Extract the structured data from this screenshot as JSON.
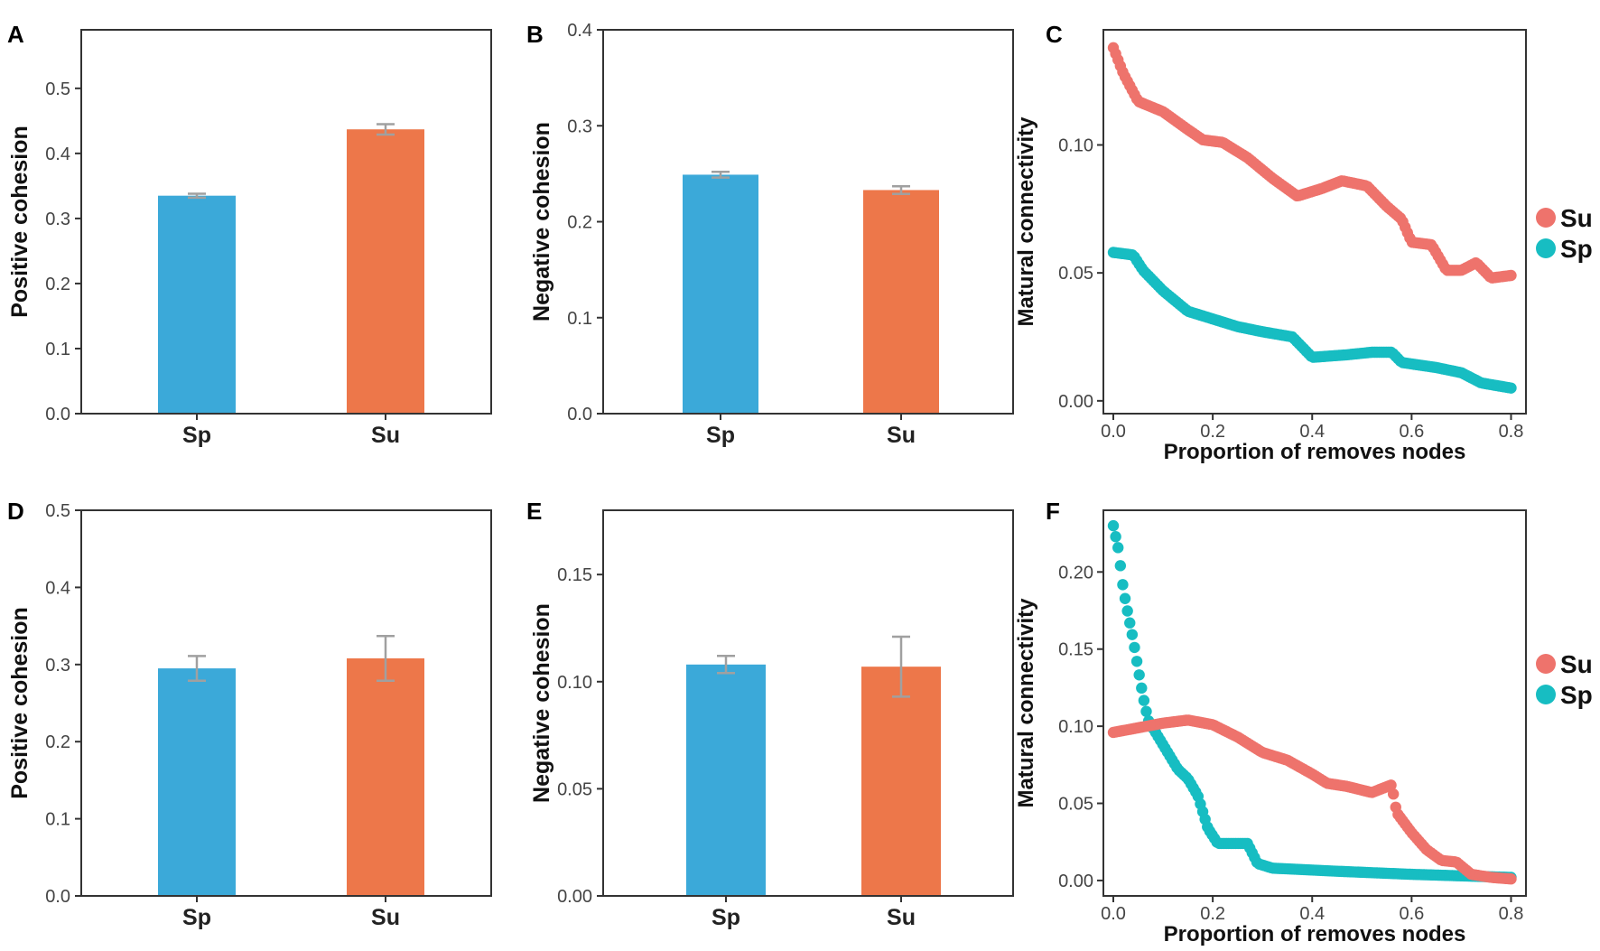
{
  "chart_data": [
    {
      "panel": "A",
      "type": "bar",
      "categories": [
        "Sp",
        "Su"
      ],
      "values": [
        0.335,
        0.437
      ],
      "errors": [
        0.003,
        0.008
      ],
      "colors": [
        "#3ba9d9",
        "#ed774a"
      ],
      "ylabel": "Positive cohesion",
      "xlabel": "",
      "ylim": [
        0,
        0.59
      ],
      "yticks": [
        0.0,
        0.1,
        0.2,
        0.3,
        0.4,
        0.5
      ],
      "ytick_labels": [
        "0.0",
        "0.1",
        "0.2",
        "0.3",
        "0.4",
        "0.5"
      ]
    },
    {
      "panel": "B",
      "type": "bar",
      "categories": [
        "Sp",
        "Su"
      ],
      "values": [
        0.249,
        0.233
      ],
      "errors": [
        0.003,
        0.004
      ],
      "colors": [
        "#3ba9d9",
        "#ed774a"
      ],
      "ylabel": "Negative cohesion",
      "xlabel": "",
      "ylim": [
        0,
        0.4
      ],
      "yticks": [
        0.0,
        0.1,
        0.2,
        0.3,
        0.4
      ],
      "ytick_labels": [
        "0.0",
        "0.1",
        "0.2",
        "0.3",
        "0.4"
      ]
    },
    {
      "panel": "C",
      "type": "scatter",
      "xlabel": "Proportion of removes nodes",
      "ylabel": "Matural connectivity",
      "xlim": [
        -0.02,
        0.83
      ],
      "ylim": [
        -0.005,
        0.145
      ],
      "xticks": [
        0.0,
        0.2,
        0.4,
        0.6,
        0.8
      ],
      "xtick_labels": [
        "0.0",
        "0.2",
        "0.4",
        "0.6",
        "0.8"
      ],
      "yticks": [
        0.0,
        0.05,
        0.1
      ],
      "ytick_labels": [
        "0.00",
        "0.05",
        "0.10"
      ],
      "legend": {
        "position": "right",
        "entries": [
          {
            "label": "Su",
            "color": "#ee736c"
          },
          {
            "label": "Sp",
            "color": "#17bdc2"
          }
        ]
      },
      "series": [
        {
          "name": "Su",
          "color": "#ee736c",
          "knots": [
            [
              0.0,
              0.138
            ],
            [
              0.02,
              0.128
            ],
            [
              0.05,
              0.117
            ],
            [
              0.1,
              0.113
            ],
            [
              0.15,
              0.106
            ],
            [
              0.18,
              0.102
            ],
            [
              0.22,
              0.101
            ],
            [
              0.27,
              0.095
            ],
            [
              0.32,
              0.087
            ],
            [
              0.37,
              0.08
            ],
            [
              0.42,
              0.083
            ],
            [
              0.46,
              0.086
            ],
            [
              0.51,
              0.084
            ],
            [
              0.55,
              0.076
            ],
            [
              0.58,
              0.071
            ],
            [
              0.6,
              0.062
            ],
            [
              0.64,
              0.061
            ],
            [
              0.67,
              0.051
            ],
            [
              0.7,
              0.051
            ],
            [
              0.73,
              0.054
            ],
            [
              0.76,
              0.048
            ],
            [
              0.8,
              0.049
            ]
          ]
        },
        {
          "name": "Sp",
          "color": "#17bdc2",
          "knots": [
            [
              0.0,
              0.058
            ],
            [
              0.04,
              0.057
            ],
            [
              0.06,
              0.051
            ],
            [
              0.1,
              0.043
            ],
            [
              0.15,
              0.035
            ],
            [
              0.2,
              0.032
            ],
            [
              0.25,
              0.029
            ],
            [
              0.3,
              0.027
            ],
            [
              0.36,
              0.025
            ],
            [
              0.38,
              0.021
            ],
            [
              0.4,
              0.017
            ],
            [
              0.47,
              0.018
            ],
            [
              0.52,
              0.019
            ],
            [
              0.56,
              0.019
            ],
            [
              0.58,
              0.015
            ],
            [
              0.65,
              0.013
            ],
            [
              0.7,
              0.011
            ],
            [
              0.74,
              0.007
            ],
            [
              0.8,
              0.005
            ]
          ]
        }
      ]
    },
    {
      "panel": "D",
      "type": "bar",
      "categories": [
        "Sp",
        "Su"
      ],
      "values": [
        0.295,
        0.308
      ],
      "errors": [
        0.016,
        0.029
      ],
      "colors": [
        "#3ba9d9",
        "#ed774a"
      ],
      "ylabel": "Positive cohesion",
      "xlabel": "",
      "ylim": [
        0,
        0.5
      ],
      "yticks": [
        0.0,
        0.1,
        0.2,
        0.3,
        0.4,
        0.5
      ],
      "ytick_labels": [
        "0.0",
        "0.1",
        "0.2",
        "0.3",
        "0.4",
        "0.5"
      ]
    },
    {
      "panel": "E",
      "type": "bar",
      "categories": [
        "Sp",
        "Su"
      ],
      "values": [
        0.108,
        0.107
      ],
      "errors": [
        0.004,
        0.014
      ],
      "colors": [
        "#3ba9d9",
        "#ed774a"
      ],
      "ylabel": "Negative cohesion",
      "xlabel": "",
      "ylim": [
        0,
        0.18
      ],
      "yticks": [
        0.0,
        0.05,
        0.1,
        0.15
      ],
      "ytick_labels": [
        "0.00",
        "0.05",
        "0.10",
        "0.15"
      ]
    },
    {
      "panel": "F",
      "type": "scatter",
      "xlabel": "Proportion of removes nodes",
      "ylabel": "Matural connectivity",
      "xlim": [
        -0.02,
        0.83
      ],
      "ylim": [
        -0.01,
        0.24
      ],
      "xticks": [
        0.0,
        0.2,
        0.4,
        0.6,
        0.8
      ],
      "xtick_labels": [
        "0.0",
        "0.2",
        "0.4",
        "0.6",
        "0.8"
      ],
      "yticks": [
        0.0,
        0.05,
        0.1,
        0.15,
        0.2
      ],
      "ytick_labels": [
        "0.00",
        "0.05",
        "0.10",
        "0.15",
        "0.20"
      ],
      "legend": {
        "position": "right",
        "entries": [
          {
            "label": "Su",
            "color": "#ee736c"
          },
          {
            "label": "Sp",
            "color": "#17bdc2"
          }
        ]
      },
      "series": [
        {
          "name": "Su",
          "color": "#ee736c",
          "knots": [
            [
              0.0,
              0.096
            ],
            [
              0.05,
              0.099
            ],
            [
              0.1,
              0.102
            ],
            [
              0.15,
              0.104
            ],
            [
              0.2,
              0.101
            ],
            [
              0.25,
              0.093
            ],
            [
              0.3,
              0.083
            ],
            [
              0.35,
              0.078
            ],
            [
              0.4,
              0.069
            ],
            [
              0.43,
              0.063
            ],
            [
              0.47,
              0.061
            ],
            [
              0.52,
              0.057
            ],
            [
              0.56,
              0.062
            ],
            [
              0.57,
              0.044
            ],
            [
              0.6,
              0.031
            ],
            [
              0.63,
              0.02
            ],
            [
              0.66,
              0.013
            ],
            [
              0.69,
              0.012
            ],
            [
              0.72,
              0.004
            ],
            [
              0.76,
              0.002
            ],
            [
              0.8,
              0.001
            ]
          ]
        },
        {
          "name": "Sp",
          "color": "#17bdc2",
          "knots": [
            [
              0.0,
              0.23
            ],
            [
              0.01,
              0.215
            ],
            [
              0.02,
              0.189
            ],
            [
              0.03,
              0.172
            ],
            [
              0.04,
              0.156
            ],
            [
              0.05,
              0.137
            ],
            [
              0.06,
              0.119
            ],
            [
              0.07,
              0.104
            ],
            [
              0.1,
              0.088
            ],
            [
              0.13,
              0.072
            ],
            [
              0.15,
              0.066
            ],
            [
              0.17,
              0.055
            ],
            [
              0.19,
              0.034
            ],
            [
              0.21,
              0.024
            ],
            [
              0.27,
              0.024
            ],
            [
              0.29,
              0.011
            ],
            [
              0.32,
              0.008
            ],
            [
              0.45,
              0.006
            ],
            [
              0.6,
              0.004
            ],
            [
              0.8,
              0.002
            ]
          ]
        }
      ]
    }
  ]
}
